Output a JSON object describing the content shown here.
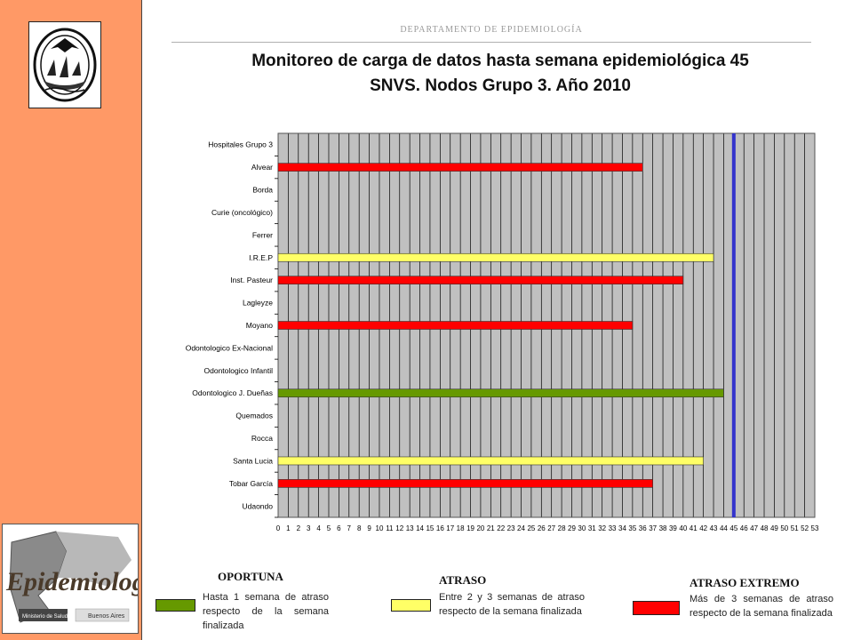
{
  "header": {
    "department": "DEPARTAMENTO  DE EPIDEMIOLOGÍA",
    "title_line1": "Monitoreo de carga de datos hasta semana epidemiológica 45",
    "title_line2": "SNVS. Nodos Grupo 3. Año 2010"
  },
  "logos": {
    "epi_text": "Epidemiología",
    "ministry": "Ministerio de Salud",
    "province": "Buenos Aires"
  },
  "colors": {
    "sidebar": "#ff9966",
    "oportuna": "#669900",
    "atraso": "#ffff66",
    "atraso_extremo": "#ff0000",
    "current_week_line": "#3333cc",
    "plot_bg": "#c0c0c0"
  },
  "chart_data": {
    "type": "bar",
    "orientation": "horizontal",
    "categories": [
      "Hospitales Grupo 3",
      "Alvear",
      "Borda",
      "Curie (oncológico)",
      "Ferrer",
      "I.R.E.P",
      "Inst. Pasteur",
      "Lagleyze",
      "Moyano",
      "Odontologico Ex-Nacional",
      "Odontologico Infantil",
      "Odontologico J. Dueñas",
      "Quemados",
      "Rocca",
      "Santa Lucia",
      "Tobar García",
      "Udaondo"
    ],
    "values": [
      null,
      36,
      null,
      null,
      null,
      43,
      40,
      null,
      35,
      null,
      null,
      44,
      null,
      null,
      42,
      37,
      null
    ],
    "status": [
      "",
      "atraso_extremo",
      "",
      "",
      "",
      "atraso",
      "atraso_extremo",
      "",
      "atraso_extremo",
      "",
      "",
      "oportuna",
      "",
      "",
      "atraso",
      "atraso_extremo",
      ""
    ],
    "xlim": [
      0,
      53
    ],
    "xticks": [
      "0",
      "1",
      "2",
      "3",
      "4",
      "5",
      "6",
      "7",
      "8",
      "9",
      "10",
      "11",
      "12",
      "13",
      "14",
      "15",
      "16",
      "17",
      "18",
      "19",
      "20",
      "21",
      "22",
      "23",
      "24",
      "25",
      "26",
      "27",
      "28",
      "29",
      "30",
      "31",
      "32",
      "33",
      "34",
      "35",
      "36",
      "37",
      "38",
      "39",
      "40",
      "41",
      "42",
      "43",
      "44",
      "45",
      "46",
      "47",
      "48",
      "49",
      "50",
      "51",
      "52",
      "53"
    ],
    "current_week": 45,
    "grid": "vertical"
  },
  "legend": [
    {
      "key": "oportuna",
      "title": "OPORTUNA",
      "desc": "Hasta 1 semana de atraso respecto de la semana finalizada"
    },
    {
      "key": "atraso",
      "title": "ATRASO",
      "desc": "Entre 2 y 3 semanas de atraso respecto de la semana finalizada"
    },
    {
      "key": "atraso_extremo",
      "title": "ATRASO EXTREMO",
      "desc": "Más de 3 semanas de atraso respecto de la semana finalizada"
    }
  ]
}
